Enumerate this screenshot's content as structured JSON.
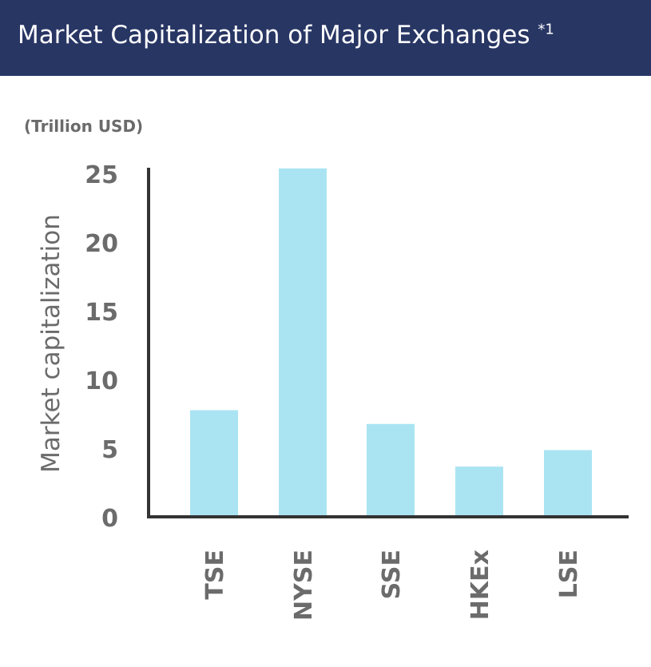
{
  "header": {
    "title": "Market Capitalization of Major Exchanges",
    "footnote_mark": "*1"
  },
  "colors": {
    "header_bg": "#283664",
    "bar": "#aae4f2",
    "axis": "#333333",
    "text": "#6b6b6b"
  },
  "chart_data": {
    "type": "bar",
    "title": "Market Capitalization of Major Exchanges *1",
    "unit_label": "(Trillion USD)",
    "ylabel": "Market capitalization",
    "xlabel": "",
    "categories": [
      "TSE",
      "NYSE",
      "SSE",
      "HKEx",
      "LSE"
    ],
    "values": [
      7.7,
      25.3,
      6.7,
      3.6,
      4.8
    ],
    "ylim": [
      0,
      25
    ],
    "yticks": [
      0,
      5,
      10,
      15,
      20,
      25
    ],
    "grid": false,
    "legend": "none"
  }
}
